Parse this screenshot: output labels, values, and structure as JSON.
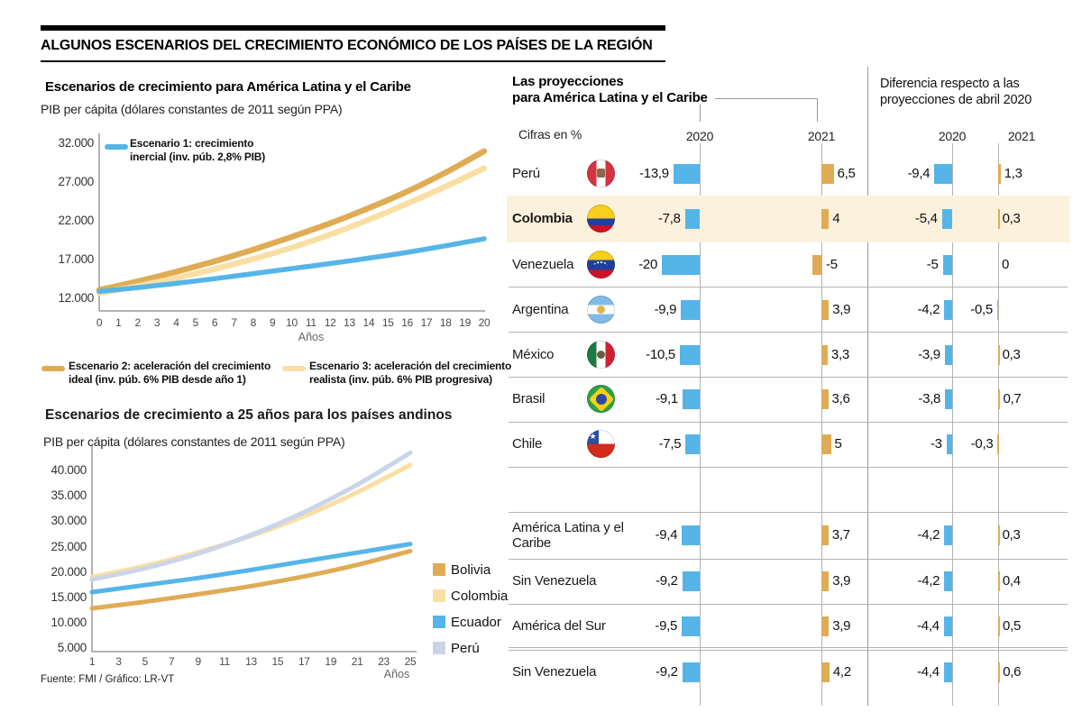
{
  "colors": {
    "blue": "#55B5E8",
    "gold": "#DFAC55",
    "light_gold": "#FADFA5",
    "lavender": "#CBD5EA",
    "highlight_band": "#FBF1DC",
    "axis_gray": "#999999"
  },
  "header": {
    "title": "ALGUNOS ESCENARIOS DEL CRECIMIENTO ECONÓMICO DE LOS PAÍSES DE LA REGIÓN"
  },
  "footer": {
    "source": "Fuente: FMI / Gráfico: LR-VT"
  },
  "chart_data": [
    {
      "type": "line",
      "title": "Escenarios de crecimiento para América Latina y el Caribe",
      "subtitle": "PIB per cápita (dólares constantes de 2011 según PPA)",
      "xlabel": "Años",
      "ylim": [
        12000,
        32000
      ],
      "x": [
        0,
        2,
        4,
        6,
        8,
        10,
        12,
        14,
        16,
        18,
        20
      ],
      "xticks": {
        "values": [
          0,
          1,
          2,
          3,
          4,
          5,
          6,
          7,
          8,
          9,
          10,
          11,
          12,
          13,
          14,
          15,
          16,
          17,
          18,
          19,
          20
        ],
        "labels": [
          "0",
          "1",
          "2",
          "3",
          "4",
          "5",
          "6",
          "7",
          "8",
          "9",
          "10",
          "11",
          "12",
          "13",
          "14",
          "15",
          "16",
          "17",
          "18",
          "19",
          "20"
        ]
      },
      "yticks": {
        "values": [
          32000,
          27000,
          22000,
          17000,
          12000
        ],
        "labels": [
          "32.000",
          "27.000",
          "22.000",
          "17.000",
          "12.000"
        ]
      },
      "series": [
        {
          "name": "Escenario 1: crecimiento inercial (inv. púb. 2,8% PIB)",
          "color": "#55B5E8",
          "values": [
            13000,
            13500,
            14050,
            14650,
            15300,
            15950,
            16600,
            17300,
            18050,
            18900,
            19800
          ]
        },
        {
          "name": "Escenario 2: aceleración del crecimiento ideal (inv. púb. 6% PIB desde año 1)",
          "color": "#DFAC55",
          "values": [
            13200,
            14300,
            15550,
            16900,
            18400,
            20050,
            21800,
            23750,
            25900,
            28350,
            31100
          ]
        },
        {
          "name": "Escenario 3: aceleración del crecimiento realista (inv. púb. 6% PIB progresiva)",
          "color": "#FADFA5",
          "values": [
            12800,
            13700,
            14750,
            15900,
            17200,
            18650,
            20350,
            22250,
            24350,
            26550,
            28900
          ]
        }
      ],
      "legend": [
        {
          "line1": "Escenario 1: crecimiento",
          "line2": "inercial (inv. púb. 2,8% PIB)"
        },
        {
          "line1": "Escenario 2: aceleración del crecimiento",
          "line2": "ideal (inv. púb. 6% PIB desde año 1)"
        },
        {
          "line1": "Escenario 3: aceleración del crecimiento",
          "line2": "realista (inv. púb. 6% PIB progresiva)"
        }
      ]
    },
    {
      "type": "line",
      "title": "Escenarios de crecimiento a 25 años para los países andinos",
      "subtitle": "PIB per cápita (dólares constantes de 2011 según PPA)",
      "xlabel": "Años",
      "ylim": [
        5000,
        40000
      ],
      "x": [
        1,
        5,
        9,
        13,
        17,
        21,
        25
      ],
      "xticks": {
        "values": [
          1,
          3,
          5,
          7,
          9,
          11,
          13,
          15,
          17,
          19,
          21,
          23,
          25
        ],
        "labels": [
          "1",
          "3",
          "5",
          "7",
          "9",
          "11",
          "13",
          "15",
          "17",
          "19",
          "21",
          "23",
          "25"
        ]
      },
      "yticks": {
        "values": [
          40000,
          35000,
          30000,
          25000,
          20000,
          15000,
          10000,
          5000
        ],
        "labels": [
          "40.000",
          "35.000",
          "30.000",
          "25.000",
          "20.000",
          "15.000",
          "10.000",
          "5.000"
        ]
      },
      "series": [
        {
          "name": "Bolivia",
          "color": "#DFAC55",
          "values": [
            13000,
            14300,
            15800,
            17400,
            19300,
            21600,
            24300
          ]
        },
        {
          "name": "Colombia",
          "color": "#FADFA5",
          "values": [
            19200,
            21400,
            24100,
            27300,
            31200,
            35900,
            41300
          ]
        },
        {
          "name": "Ecuador",
          "color": "#55B5E8",
          "values": [
            16200,
            17600,
            19000,
            20600,
            22300,
            24000,
            25700
          ]
        },
        {
          "name": "Perú",
          "color": "#CBD5EA",
          "values": [
            18700,
            20900,
            23800,
            27500,
            32000,
            37400,
            43700
          ]
        }
      ]
    }
  ],
  "right_panel": {
    "title_line1": "Las proyecciones",
    "title_line2": "para América Latina y el Caribe",
    "units_note": "Cifras en %",
    "proj_cols": [
      "2020",
      "2021"
    ],
    "diff_title_line1": "Diferencia respecto a las",
    "diff_title_line2": "proyecciones de abril 2020",
    "diff_cols": [
      "2020",
      "2021"
    ],
    "rows": [
      {
        "label": "Perú",
        "flag": "peru",
        "p2020": {
          "v": -13.9,
          "t": "-13,9"
        },
        "p2021": {
          "v": 6.5,
          "t": "6,5"
        },
        "d2020": {
          "v": -9.4,
          "t": "-9,4"
        },
        "d2021": {
          "v": 1.3,
          "t": "1,3"
        }
      },
      {
        "label": "Colombia",
        "flag": "colombia",
        "highlight": true,
        "bold": true,
        "p2020": {
          "v": -7.8,
          "t": "-7,8"
        },
        "p2021": {
          "v": 4,
          "t": "4"
        },
        "d2020": {
          "v": -5.4,
          "t": "-5,4"
        },
        "d2021": {
          "v": 0.3,
          "t": "0,3"
        }
      },
      {
        "label": "Venezuela",
        "flag": "venezuela",
        "p2020": {
          "v": -20,
          "t": "-20"
        },
        "p2021": {
          "v": -5,
          "t": "-5"
        },
        "d2020": {
          "v": -5,
          "t": "-5"
        },
        "d2021": {
          "v": 0,
          "t": "0"
        }
      },
      {
        "label": "Argentina",
        "flag": "argentina",
        "p2020": {
          "v": -9.9,
          "t": "-9,9"
        },
        "p2021": {
          "v": 3.9,
          "t": "3,9"
        },
        "d2020": {
          "v": -4.2,
          "t": "-4,2"
        },
        "d2021": {
          "v": -0.5,
          "t": "-0,5"
        }
      },
      {
        "label": "México",
        "flag": "mexico",
        "p2020": {
          "v": -10.5,
          "t": "-10,5"
        },
        "p2021": {
          "v": 3.3,
          "t": "3,3"
        },
        "d2020": {
          "v": -3.9,
          "t": "-3,9"
        },
        "d2021": {
          "v": 0.3,
          "t": "0,3"
        }
      },
      {
        "label": "Brasil",
        "flag": "brasil",
        "p2020": {
          "v": -9.1,
          "t": "-9,1"
        },
        "p2021": {
          "v": 3.6,
          "t": "3,6"
        },
        "d2020": {
          "v": -3.8,
          "t": "-3,8"
        },
        "d2021": {
          "v": 0.7,
          "t": "0,7"
        }
      },
      {
        "label": "Chile",
        "flag": "chile",
        "p2020": {
          "v": -7.5,
          "t": "-7,5"
        },
        "p2021": {
          "v": 5,
          "t": "5"
        },
        "d2020": {
          "v": -3,
          "t": "-3"
        },
        "d2021": {
          "v": -0.3,
          "t": "-0,3"
        }
      },
      {
        "label": "América Latina y el Caribe",
        "two_line": true,
        "p2020": {
          "v": -9.4,
          "t": "-9,4"
        },
        "p2021": {
          "v": 3.7,
          "t": "3,7"
        },
        "d2020": {
          "v": -4.2,
          "t": "-4,2"
        },
        "d2021": {
          "v": 0.3,
          "t": "0,3"
        }
      },
      {
        "label": "Sin Venezuela",
        "p2020": {
          "v": -9.2,
          "t": "-9,2"
        },
        "p2021": {
          "v": 3.9,
          "t": "3,9"
        },
        "d2020": {
          "v": -4.2,
          "t": "-4,2"
        },
        "d2021": {
          "v": 0.4,
          "t": "0,4"
        }
      },
      {
        "label": "América del Sur",
        "p2020": {
          "v": -9.5,
          "t": "-9,5"
        },
        "p2021": {
          "v": 3.9,
          "t": "3,9"
        },
        "d2020": {
          "v": -4.4,
          "t": "-4,4"
        },
        "d2021": {
          "v": 0.5,
          "t": "0,5"
        }
      },
      {
        "label": "Sin Venezuela",
        "p2020": {
          "v": -9.2,
          "t": "-9,2"
        },
        "p2021": {
          "v": 4.2,
          "t": "4,2"
        },
        "d2020": {
          "v": -4.4,
          "t": "-4,4"
        },
        "d2021": {
          "v": 0.6,
          "t": "0,6"
        }
      }
    ]
  }
}
